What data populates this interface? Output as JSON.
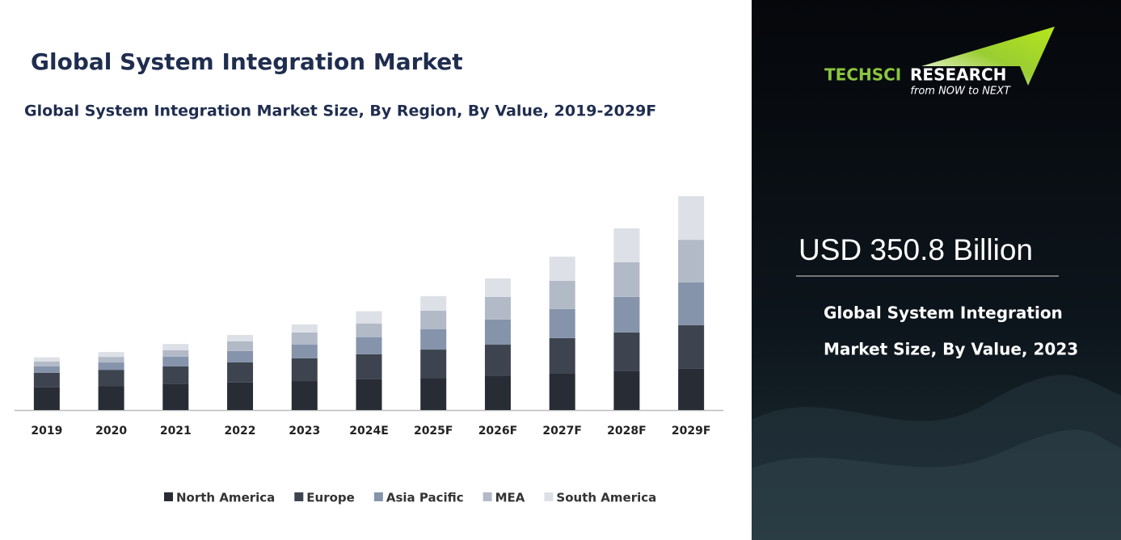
{
  "chart_data": {
    "type": "stacked_bar",
    "title": "Global System Integration Market",
    "subtitle": "Global System Integration Market Size, By Region, By Value, 2019-2029F",
    "categories": [
      "2019",
      "2020",
      "2021",
      "2022",
      "2023",
      "2024E",
      "2025F",
      "2026F",
      "2027F",
      "2028F",
      "2029F"
    ],
    "series": [
      {
        "name": "North America",
        "color": "#272c35",
        "values": [
          93,
          99,
          106,
          113,
          119,
          126,
          132,
          139,
          149,
          159,
          169
        ]
      },
      {
        "name": "Europe",
        "color": "#3d4450",
        "values": [
          60,
          66,
          73,
          83,
          93,
          103,
          116,
          129,
          146,
          159,
          179
        ]
      },
      {
        "name": "Asia Pacific",
        "color": "#8593ab",
        "values": [
          26,
          30,
          40,
          46,
          56,
          70,
          83,
          103,
          119,
          146,
          175
        ]
      },
      {
        "name": "MEA",
        "color": "#b2b9c7",
        "values": [
          20,
          23,
          26,
          40,
          50,
          56,
          76,
          93,
          116,
          142,
          175
        ]
      },
      {
        "name": "South America",
        "color": "#dde0e6",
        "values": [
          17,
          20,
          26,
          26,
          33,
          50,
          60,
          76,
          99,
          139,
          179
        ]
      }
    ],
    "legend": "bottom"
  },
  "panel": {
    "brand_left": "TECHSCI",
    "brand_right": "RESEARCH",
    "tagline": "from NOW to NEXT",
    "headline": "USD 350.8 Billion",
    "caption_line1": "Global System Integration",
    "caption_line2": "Market Size, By Value, 2023"
  }
}
